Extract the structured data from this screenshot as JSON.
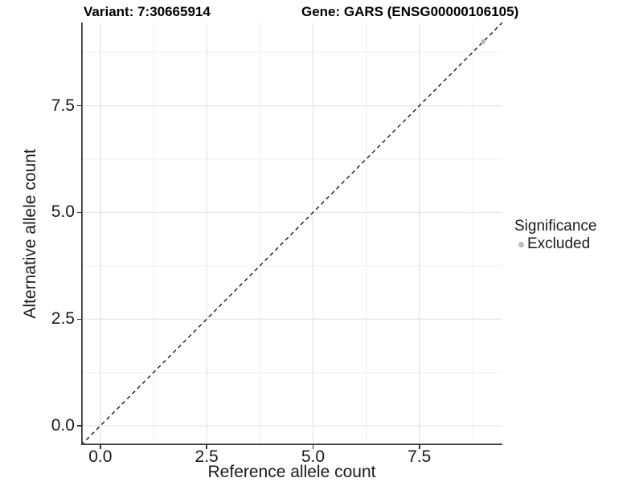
{
  "chart_data": {
    "type": "scatter",
    "titles": {
      "left": "Variant: 7:30665914",
      "right": "Gene: GARS (ENSG00000106105)"
    },
    "xlabel": "Reference allele count",
    "ylabel": "Alternative allele count",
    "xlim": [
      -0.45,
      9.45
    ],
    "ylim": [
      -0.45,
      9.45
    ],
    "x_ticks": {
      "values": [
        0,
        2.5,
        5,
        7.5
      ],
      "labels": [
        "0.0",
        "2.5",
        "5.0",
        "7.5"
      ]
    },
    "y_ticks": {
      "values": [
        0,
        2.5,
        5,
        7.5
      ],
      "labels": [
        "0.0",
        "2.5",
        "5.0",
        "7.5"
      ]
    },
    "x_minor_ticks": [
      1.25,
      3.75,
      6.25,
      8.75
    ],
    "y_minor_ticks": [
      1.25,
      3.75,
      6.25,
      8.75
    ],
    "grid": "major+minor",
    "series": [
      {
        "name": "Excluded",
        "color": "#bdbdbd",
        "marker": "circle",
        "points": [
          {
            "x": 9,
            "y": 9
          }
        ]
      }
    ],
    "reference_line": {
      "kind": "identity",
      "slope": 1,
      "intercept": 0,
      "style": "dashed",
      "color": "#1a1a1a"
    },
    "legend": {
      "title": "Significance",
      "position": "right",
      "entries": [
        {
          "label": "Excluded",
          "color": "#bdbdbd"
        }
      ]
    }
  },
  "colors": {
    "background": "#ffffff",
    "grid_major": "#e4e4e4",
    "grid_minor": "#efefef",
    "axis_line": "#3a3a3a",
    "tick": "#333333",
    "text": "#1a1a1a",
    "point": "#bdbdbd"
  }
}
